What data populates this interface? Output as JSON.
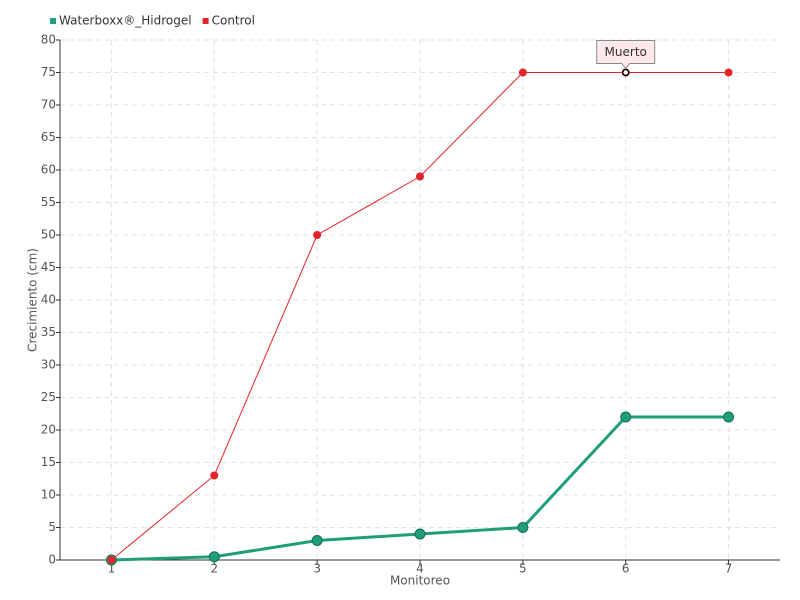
{
  "chart_data": {
    "type": "line",
    "x_label": "Monitoreo",
    "y_label": "Crecimiento (cm)",
    "categories": [
      "1",
      "2",
      "3",
      "4",
      "5",
      "6",
      "7"
    ],
    "series": [
      {
        "name": "Waterboxx®_Hidrogel",
        "color": "#1f9e7a",
        "values": [
          0,
          0.5,
          3,
          4,
          5,
          22,
          22
        ]
      },
      {
        "name": "Control",
        "color": "#e3242b",
        "values": [
          0,
          13,
          50,
          59,
          75,
          75,
          75
        ],
        "point_labels": [
          null,
          null,
          null,
          null,
          null,
          "Muerto",
          null
        ]
      }
    ],
    "ylim": [
      0,
      80
    ],
    "yticks": [
      0,
      5,
      10,
      15,
      20,
      25,
      30,
      35,
      40,
      45,
      50,
      55,
      60,
      65,
      70,
      75,
      80
    ],
    "grid": true,
    "legend": "top-left"
  }
}
